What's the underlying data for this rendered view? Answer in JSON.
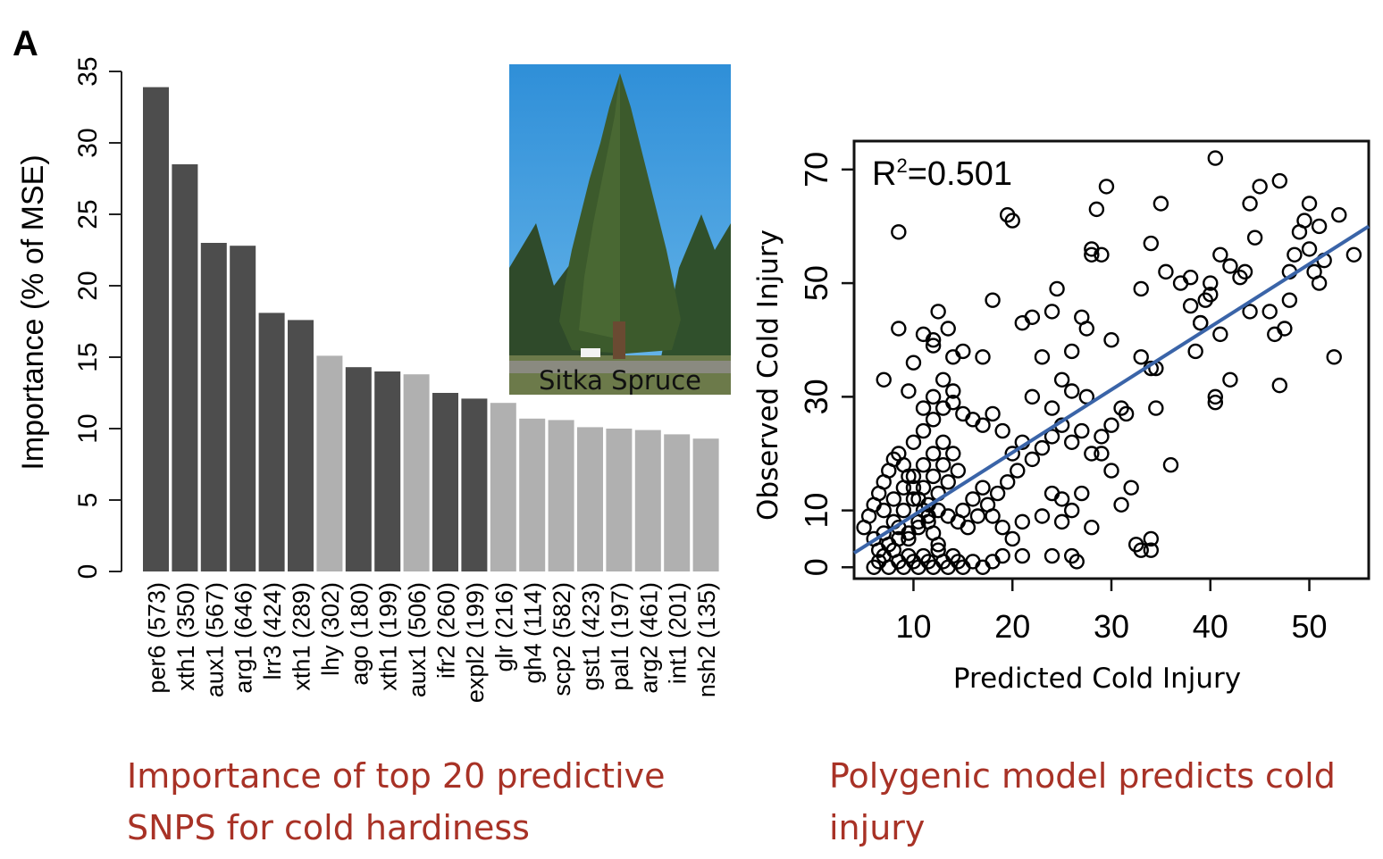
{
  "panel_label": "A",
  "inset": {
    "caption": "Sitka Spruce",
    "picture": "photograph of a tall sitka spruce tree against a blue sky"
  },
  "captions": {
    "left": "Importance of top 20 predictive SNPS for cold hardiness",
    "right": "Polygenic model predicts cold injury"
  },
  "colors": {
    "bar_dark": "#4d4d4d",
    "bar_light": "#b0b0b0",
    "regression_line": "#3a64a8",
    "caption": "#a83226"
  },
  "chart_data": [
    {
      "type": "bar",
      "ylabel": "Importance  (% of MSE)",
      "xlabel": "",
      "ylim": [
        0,
        35
      ],
      "yticks": [
        0,
        5,
        10,
        15,
        20,
        25,
        30,
        35
      ],
      "categories": [
        "per6 (573)",
        "xth1 (350)",
        "aux1 (567)",
        "arg1 (646)",
        "lrr3 (424)",
        "xth1 (289)",
        "lhy (302)",
        "ago (180)",
        "xth1 (199)",
        "aux1 (506)",
        "ifr2 (260)",
        "expl2 (199)",
        "glr (216)",
        "gh4 (114)",
        "scp2 (582)",
        "gst1 (423)",
        "pal1 (197)",
        "arg2 (461)",
        "int1 (201)",
        "nsh2 (135)"
      ],
      "values": [
        33.9,
        28.5,
        23.0,
        22.8,
        18.1,
        17.6,
        15.1,
        14.3,
        14.0,
        13.8,
        12.5,
        12.1,
        11.8,
        10.7,
        10.6,
        10.1,
        10.0,
        9.9,
        9.6,
        9.3
      ],
      "shade": [
        "dark",
        "dark",
        "dark",
        "dark",
        "dark",
        "dark",
        "light",
        "dark",
        "dark",
        "light",
        "dark",
        "dark",
        "light",
        "light",
        "light",
        "light",
        "light",
        "light",
        "light",
        "light"
      ],
      "grid": false
    },
    {
      "type": "scatter",
      "xlabel": "Predicted Cold Injury",
      "ylabel": "Observed Cold Injury",
      "xlim": [
        4,
        56
      ],
      "ylim": [
        -2,
        75
      ],
      "xticks": [
        10,
        20,
        30,
        40,
        50
      ],
      "yticks": [
        0,
        10,
        30,
        50,
        70
      ],
      "annotation": {
        "prefix": "R",
        "sup": "2",
        "suffix": "=0.501"
      },
      "regression": {
        "x": [
          4,
          56
        ],
        "y": [
          2.5,
          60
        ]
      },
      "grid": false,
      "points": [
        [
          6,
          0
        ],
        [
          6.5,
          1
        ],
        [
          7,
          2
        ],
        [
          7.5,
          0
        ],
        [
          8,
          3
        ],
        [
          8.5,
          1
        ],
        [
          9,
          0
        ],
        [
          9.5,
          2
        ],
        [
          10,
          1
        ],
        [
          10.5,
          0
        ],
        [
          11,
          2
        ],
        [
          11.5,
          1
        ],
        [
          12,
          0
        ],
        [
          12.5,
          3
        ],
        [
          13,
          1
        ],
        [
          13.5,
          0
        ],
        [
          14,
          2
        ],
        [
          14.5,
          1
        ],
        [
          15,
          0
        ],
        [
          16,
          1
        ],
        [
          17,
          0
        ],
        [
          18,
          1
        ],
        [
          19,
          2
        ],
        [
          21,
          2
        ],
        [
          5,
          7
        ],
        [
          5.5,
          9
        ],
        [
          6,
          11
        ],
        [
          6.5,
          13
        ],
        [
          7,
          15
        ],
        [
          7.5,
          17
        ],
        [
          8,
          19
        ],
        [
          8.5,
          20
        ],
        [
          9,
          18
        ],
        [
          9.5,
          16
        ],
        [
          10,
          14
        ],
        [
          10.5,
          12
        ],
        [
          11,
          10
        ],
        [
          11.5,
          8
        ],
        [
          12,
          6
        ],
        [
          12.5,
          4
        ],
        [
          6,
          5
        ],
        [
          7,
          6
        ],
        [
          8,
          8
        ],
        [
          9,
          10
        ],
        [
          10,
          12
        ],
        [
          11,
          14
        ],
        [
          12,
          16
        ],
        [
          13,
          18
        ],
        [
          14,
          20
        ],
        [
          8,
          12
        ],
        [
          9,
          14
        ],
        [
          10,
          16
        ],
        [
          11,
          18
        ],
        [
          12,
          20
        ],
        [
          13,
          22
        ],
        [
          7,
          10
        ],
        [
          8.5,
          7
        ],
        [
          9.5,
          5
        ],
        [
          10.5,
          8
        ],
        [
          11.5,
          11
        ],
        [
          12.5,
          13
        ],
        [
          13.5,
          15
        ],
        [
          14.5,
          17
        ],
        [
          6.5,
          3
        ],
        [
          7.5,
          4
        ],
        [
          8.5,
          5
        ],
        [
          9.5,
          6
        ],
        [
          10.5,
          7
        ],
        [
          11.5,
          9
        ],
        [
          12.5,
          10
        ],
        [
          13.5,
          9
        ],
        [
          14.5,
          8
        ],
        [
          15.5,
          7
        ],
        [
          16.5,
          9
        ],
        [
          17.5,
          11
        ],
        [
          18.5,
          13
        ],
        [
          19.5,
          15
        ],
        [
          20.5,
          17
        ],
        [
          15,
          10
        ],
        [
          16,
          12
        ],
        [
          17,
          14
        ],
        [
          18,
          9
        ],
        [
          19,
          7
        ],
        [
          20,
          5
        ],
        [
          21,
          8
        ],
        [
          10,
          22
        ],
        [
          11,
          24
        ],
        [
          12,
          26
        ],
        [
          13,
          28
        ],
        [
          14,
          29
        ],
        [
          15,
          27
        ],
        [
          16,
          26
        ],
        [
          17,
          25
        ],
        [
          18,
          27
        ],
        [
          19,
          24
        ],
        [
          20,
          20
        ],
        [
          21,
          22
        ],
        [
          22,
          19
        ],
        [
          23,
          21
        ],
        [
          24,
          23
        ],
        [
          25,
          25
        ],
        [
          26,
          22
        ],
        [
          27,
          24
        ],
        [
          28,
          20
        ],
        [
          29,
          23
        ],
        [
          30,
          25
        ],
        [
          11,
          28
        ],
        [
          12,
          30
        ],
        [
          13,
          33
        ],
        [
          14,
          31
        ],
        [
          9.5,
          31
        ],
        [
          10,
          36
        ],
        [
          12,
          40
        ],
        [
          13.5,
          42
        ],
        [
          15,
          38
        ],
        [
          14,
          37
        ],
        [
          7,
          33
        ],
        [
          8.5,
          59
        ],
        [
          8.5,
          42
        ],
        [
          11,
          41
        ],
        [
          12,
          39
        ],
        [
          12.5,
          45
        ],
        [
          17,
          37
        ],
        [
          18,
          47
        ],
        [
          19.5,
          62
        ],
        [
          20,
          61
        ],
        [
          21,
          43
        ],
        [
          22,
          44
        ],
        [
          23,
          37
        ],
        [
          24,
          45
        ],
        [
          24.5,
          49
        ],
        [
          25,
          33
        ],
        [
          26,
          38
        ],
        [
          27,
          44
        ],
        [
          27.5,
          42
        ],
        [
          28,
          56
        ],
        [
          28,
          55
        ],
        [
          29.5,
          67
        ],
        [
          29,
          55
        ],
        [
          28.5,
          63
        ],
        [
          30,
          40
        ],
        [
          22,
          30
        ],
        [
          24,
          28
        ],
        [
          26,
          31
        ],
        [
          27.5,
          30
        ],
        [
          29,
          20
        ],
        [
          30,
          17
        ],
        [
          31,
          28
        ],
        [
          31.5,
          27
        ],
        [
          33,
          37
        ],
        [
          34,
          35
        ],
        [
          34.5,
          35
        ],
        [
          35,
          64
        ],
        [
          34,
          57
        ],
        [
          35.5,
          52
        ],
        [
          33,
          49
        ],
        [
          34.5,
          28
        ],
        [
          36,
          18
        ],
        [
          32,
          14
        ],
        [
          31,
          11
        ],
        [
          32.5,
          4
        ],
        [
          33,
          3
        ],
        [
          34,
          5
        ],
        [
          34,
          3
        ],
        [
          25,
          12
        ],
        [
          26,
          10
        ],
        [
          24,
          13
        ],
        [
          23,
          9
        ],
        [
          25,
          8
        ],
        [
          26,
          2
        ],
        [
          24,
          2
        ],
        [
          26.5,
          1
        ],
        [
          28,
          7
        ],
        [
          27,
          13
        ],
        [
          37,
          50
        ],
        [
          38,
          46
        ],
        [
          38,
          51
        ],
        [
          39,
          43
        ],
        [
          39.5,
          47
        ],
        [
          40,
          50
        ],
        [
          40.5,
          72
        ],
        [
          41,
          55
        ],
        [
          40.5,
          30
        ],
        [
          40.5,
          29
        ],
        [
          41,
          41
        ],
        [
          42,
          53
        ],
        [
          43,
          51
        ],
        [
          43.5,
          52
        ],
        [
          44,
          64
        ],
        [
          44.5,
          58
        ],
        [
          45,
          67
        ],
        [
          46.5,
          41
        ],
        [
          47,
          68
        ],
        [
          47,
          32
        ],
        [
          47.5,
          42
        ],
        [
          48,
          47
        ],
        [
          48,
          52
        ],
        [
          48.5,
          55
        ],
        [
          49,
          59
        ],
        [
          50,
          64
        ],
        [
          50,
          56
        ],
        [
          50.5,
          52
        ],
        [
          51,
          60
        ],
        [
          51,
          50
        ],
        [
          51.5,
          54
        ],
        [
          52.5,
          37
        ],
        [
          53,
          62
        ],
        [
          54.5,
          55
        ],
        [
          44,
          45
        ],
        [
          42,
          33
        ],
        [
          38.5,
          38
        ],
        [
          39,
          43
        ],
        [
          40,
          48
        ],
        [
          49.5,
          61
        ],
        [
          46,
          45
        ]
      ]
    }
  ]
}
